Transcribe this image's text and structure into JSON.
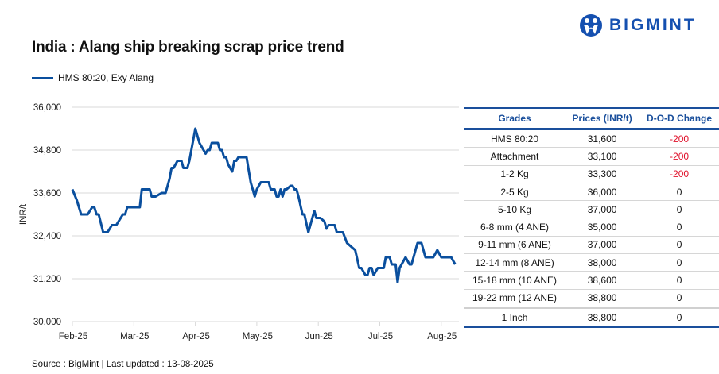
{
  "header": {
    "title": "India : Alang ship breaking scrap price trend",
    "logo_text": "BIGMINT"
  },
  "footer": {
    "source": "Source : BigMint | Last updated : 13-08-2025"
  },
  "colors": {
    "line": "#0a4f9e",
    "header": "#1a4f9c",
    "negative": "#e0102a",
    "grid": "#d9d9d9"
  },
  "chart_data": {
    "type": "line",
    "title": "India : Alang ship breaking scrap price trend",
    "ylabel": "INR/t",
    "xlabel": "",
    "ylim": [
      30000,
      36000
    ],
    "yticks": [
      30000,
      31200,
      32400,
      33600,
      34800,
      36000
    ],
    "ytick_labels": [
      "30,000",
      "31,200",
      "32,400",
      "33,600",
      "34,800",
      "36,000"
    ],
    "xtick_labels": [
      "Feb-25",
      "Mar-25",
      "Apr-25",
      "May-25",
      "Jun-25",
      "Jul-25",
      "Aug-25"
    ],
    "xticks": [
      "2025-02-01",
      "2025-03-01",
      "2025-04-01",
      "2025-05-01",
      "2025-06-01",
      "2025-07-01",
      "2025-08-01"
    ],
    "grid": true,
    "legend_position": "top-left",
    "series": [
      {
        "name": "HMS 80:20, Exy Alang",
        "points": [
          [
            "2025-02-01",
            33700
          ],
          [
            "2025-02-03",
            33400
          ],
          [
            "2025-02-05",
            33000
          ],
          [
            "2025-02-08",
            33000
          ],
          [
            "2025-02-10",
            33200
          ],
          [
            "2025-02-11",
            33200
          ],
          [
            "2025-02-12",
            33000
          ],
          [
            "2025-02-13",
            33000
          ],
          [
            "2025-02-15",
            32500
          ],
          [
            "2025-02-17",
            32500
          ],
          [
            "2025-02-19",
            32700
          ],
          [
            "2025-02-21",
            32700
          ],
          [
            "2025-02-24",
            33000
          ],
          [
            "2025-02-25",
            33000
          ],
          [
            "2025-02-26",
            33200
          ],
          [
            "2025-03-04",
            33200
          ],
          [
            "2025-03-05",
            33700
          ],
          [
            "2025-03-09",
            33700
          ],
          [
            "2025-03-10",
            33500
          ],
          [
            "2025-03-12",
            33500
          ],
          [
            "2025-03-15",
            33600
          ],
          [
            "2025-03-17",
            33600
          ],
          [
            "2025-03-19",
            34000
          ],
          [
            "2025-03-20",
            34300
          ],
          [
            "2025-03-21",
            34300
          ],
          [
            "2025-03-23",
            34500
          ],
          [
            "2025-03-25",
            34500
          ],
          [
            "2025-03-26",
            34300
          ],
          [
            "2025-03-28",
            34300
          ],
          [
            "2025-03-29",
            34500
          ],
          [
            "2025-04-01",
            35400
          ],
          [
            "2025-04-03",
            35000
          ],
          [
            "2025-04-06",
            34700
          ],
          [
            "2025-04-07",
            34800
          ],
          [
            "2025-04-08",
            34800
          ],
          [
            "2025-04-09",
            35000
          ],
          [
            "2025-04-12",
            35000
          ],
          [
            "2025-04-13",
            34800
          ],
          [
            "2025-04-14",
            34800
          ],
          [
            "2025-04-15",
            34600
          ],
          [
            "2025-04-16",
            34600
          ],
          [
            "2025-04-17",
            34400
          ],
          [
            "2025-04-19",
            34200
          ],
          [
            "2025-04-20",
            34500
          ],
          [
            "2025-04-21",
            34500
          ],
          [
            "2025-04-22",
            34600
          ],
          [
            "2025-04-26",
            34600
          ],
          [
            "2025-04-28",
            33900
          ],
          [
            "2025-04-30",
            33500
          ],
          [
            "2025-05-01",
            33700
          ],
          [
            "2025-05-03",
            33900
          ],
          [
            "2025-05-07",
            33900
          ],
          [
            "2025-05-08",
            33700
          ],
          [
            "2025-05-10",
            33700
          ],
          [
            "2025-05-11",
            33500
          ],
          [
            "2025-05-12",
            33500
          ],
          [
            "2025-05-13",
            33700
          ],
          [
            "2025-05-14",
            33500
          ],
          [
            "2025-05-15",
            33700
          ],
          [
            "2025-05-16",
            33700
          ],
          [
            "2025-05-18",
            33800
          ],
          [
            "2025-05-19",
            33800
          ],
          [
            "2025-05-20",
            33700
          ],
          [
            "2025-05-21",
            33700
          ],
          [
            "2025-05-22",
            33500
          ],
          [
            "2025-05-24",
            33000
          ],
          [
            "2025-05-25",
            33000
          ],
          [
            "2025-05-27",
            32500
          ],
          [
            "2025-05-30",
            33100
          ],
          [
            "2025-05-31",
            32900
          ],
          [
            "2025-06-02",
            32900
          ],
          [
            "2025-06-04",
            32800
          ],
          [
            "2025-06-05",
            32600
          ],
          [
            "2025-06-06",
            32700
          ],
          [
            "2025-06-09",
            32700
          ],
          [
            "2025-06-10",
            32500
          ],
          [
            "2025-06-13",
            32500
          ],
          [
            "2025-06-15",
            32200
          ],
          [
            "2025-06-17",
            32100
          ],
          [
            "2025-06-19",
            32000
          ],
          [
            "2025-06-21",
            31500
          ],
          [
            "2025-06-22",
            31500
          ],
          [
            "2025-06-24",
            31300
          ],
          [
            "2025-06-25",
            31300
          ],
          [
            "2025-06-26",
            31500
          ],
          [
            "2025-06-27",
            31500
          ],
          [
            "2025-06-28",
            31300
          ],
          [
            "2025-06-30",
            31500
          ],
          [
            "2025-07-03",
            31500
          ],
          [
            "2025-07-04",
            31800
          ],
          [
            "2025-07-06",
            31800
          ],
          [
            "2025-07-07",
            31600
          ],
          [
            "2025-07-09",
            31600
          ],
          [
            "2025-07-10",
            31100
          ],
          [
            "2025-07-11",
            31500
          ],
          [
            "2025-07-14",
            31800
          ],
          [
            "2025-07-16",
            31600
          ],
          [
            "2025-07-17",
            31600
          ],
          [
            "2025-07-20",
            32200
          ],
          [
            "2025-07-22",
            32200
          ],
          [
            "2025-07-24",
            31800
          ],
          [
            "2025-07-28",
            31800
          ],
          [
            "2025-07-30",
            32000
          ],
          [
            "2025-08-01",
            31800
          ],
          [
            "2025-08-06",
            31800
          ],
          [
            "2025-08-08",
            31600
          ]
        ]
      }
    ]
  },
  "table": {
    "headers": [
      "Grades",
      "Prices (INR/t)",
      "D-O-D Change"
    ],
    "rows": [
      [
        "HMS 80:20",
        "31,600",
        "-200"
      ],
      [
        "Attachment",
        "33,100",
        "-200"
      ],
      [
        "1-2 Kg",
        "33,300",
        "-200"
      ],
      [
        "2-5 Kg",
        "36,000",
        "0"
      ],
      [
        "5-10 Kg",
        "37,000",
        "0"
      ],
      [
        "6-8 mm (4 ANE)",
        "35,000",
        "0"
      ],
      [
        "9-11 mm (6 ANE)",
        "37,000",
        "0"
      ],
      [
        "12-14 mm (8 ANE)",
        "38,000",
        "0"
      ],
      [
        "15-18 mm (10 ANE)",
        "38,600",
        "0"
      ],
      [
        "19-22 mm (12 ANE)",
        "38,800",
        "0"
      ],
      [
        "1 Inch",
        "38,800",
        "0"
      ]
    ]
  }
}
